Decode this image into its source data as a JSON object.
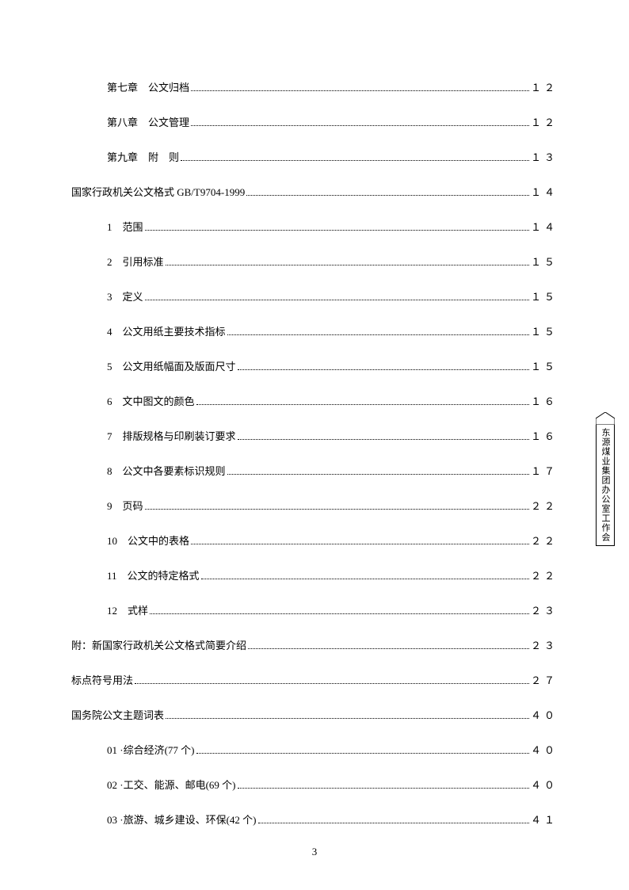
{
  "toc": [
    {
      "indent": 1,
      "label": "第七章　公文归档",
      "page": "１２"
    },
    {
      "indent": 1,
      "label": "第八章　公文管理",
      "page": "１２"
    },
    {
      "indent": 1,
      "label": "第九章　附　则",
      "page": "１３"
    },
    {
      "indent": 0,
      "label": "国家行政机关公文格式 GB/T9704-1999",
      "page": "１４"
    },
    {
      "indent": 1,
      "label": "1　范围",
      "page": "１４"
    },
    {
      "indent": 1,
      "label": "2　引用标准",
      "page": "１５"
    },
    {
      "indent": 1,
      "label": "3　定义",
      "page": "１５"
    },
    {
      "indent": 1,
      "label": "4　公文用纸主要技术指标",
      "page": "１５"
    },
    {
      "indent": 1,
      "label": "5　公文用纸幅面及版面尺寸",
      "page": "１５"
    },
    {
      "indent": 1,
      "label": "6　文中图文的颜色",
      "page": "１６"
    },
    {
      "indent": 1,
      "label": "7　排版规格与印刷装订要求",
      "page": "１６"
    },
    {
      "indent": 1,
      "label": "8　公文中各要素标识规则",
      "page": "１７"
    },
    {
      "indent": 1,
      "label": "9　页码",
      "page": "２２"
    },
    {
      "indent": 1,
      "label": "10　公文中的表格",
      "page": "２２"
    },
    {
      "indent": 1,
      "label": "11　公文的特定格式",
      "page": "２２"
    },
    {
      "indent": 1,
      "label": "12　式样",
      "page": "２３"
    },
    {
      "indent": 0,
      "label": "附：新国家行政机关公文格式简要介绍",
      "page": "２３"
    },
    {
      "indent": 0,
      "label": "标点符号用法",
      "page": "２７"
    },
    {
      "indent": 0,
      "label": "国务院公文主题词表",
      "page": "４０"
    },
    {
      "indent": 1,
      "label": "01 ·综合经济(77 个)",
      "page": "４０"
    },
    {
      "indent": 1,
      "label": "02 ·工交、能源、邮电(69 个)",
      "page": "４０"
    },
    {
      "indent": 1,
      "label": "03 ·旅游、城乡建设、环保(42 个)",
      "page": "４１"
    }
  ],
  "page_number": "3",
  "side_tab": "东源煤业集团办公室工作会"
}
